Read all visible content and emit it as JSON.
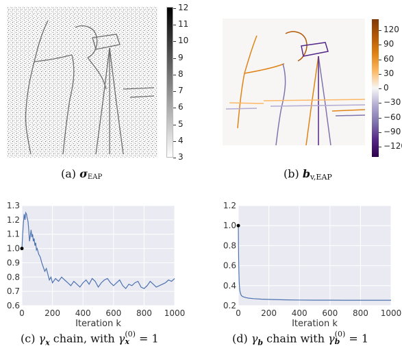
{
  "panels": {
    "a": {
      "caption_prefix": "(a)",
      "caption_symbol": "σ",
      "caption_sub": "EAP",
      "colorbar_ticks": [
        "12",
        "11",
        "10",
        "9",
        "8",
        "7",
        "6",
        "5",
        "4",
        "3"
      ]
    },
    "b": {
      "caption_prefix": "(b)",
      "caption_symbol": "b",
      "caption_sub": "v,EAP",
      "colorbar_ticks": [
        "120",
        "90",
        "60",
        "30",
        "0",
        "−30",
        "−60",
        "−90",
        "−120"
      ]
    },
    "c": {
      "caption_text_1": "(c) ",
      "caption_gamma": "γ",
      "caption_gamma_sub": "x",
      "caption_text_2": " chain, with ",
      "caption_gamma0": "γ",
      "caption_gamma0_sub": "x",
      "caption_sup": "(0)",
      "caption_text_3": " = 1"
    },
    "d": {
      "caption_text_1": "(d) ",
      "caption_gamma": "γ",
      "caption_gamma_sub": "b",
      "caption_text_2": " chain with ",
      "caption_gamma0": "γ",
      "caption_gamma0_sub": "b",
      "caption_sup": "(0)",
      "caption_text_3": " = 1"
    }
  },
  "colors": {
    "line": "#4c72b0",
    "plot_bg": "#eaeaf2",
    "grid": "#ffffff",
    "cmap_b_top": "#b35806",
    "cmap_b_mid": "#f7f7f7",
    "cmap_b_bot": "#542788"
  },
  "chart_data": [
    {
      "type": "line",
      "id": "c",
      "title": "",
      "xlabel": "Iteration k",
      "ylabel": "",
      "xlim": [
        0,
        1000
      ],
      "ylim": [
        0.6,
        1.3
      ],
      "xticks": [
        0,
        200,
        400,
        600,
        800,
        1000
      ],
      "yticks": [
        0.6,
        0.7,
        0.8,
        0.9,
        1.0,
        1.1,
        1.2,
        1.3
      ],
      "ytick_labels": [
        "0.6",
        "0.7",
        "0.8",
        "0.9",
        "1.0",
        "1.1",
        "1.2",
        "1.3"
      ],
      "grid": true,
      "start_point": {
        "x": 0,
        "y": 1.0
      },
      "series": [
        {
          "x": [
            0,
            5,
            10,
            15,
            20,
            25,
            30,
            35,
            40,
            45,
            50,
            55,
            60,
            65,
            70,
            75,
            80,
            85,
            90,
            95,
            100,
            110,
            120,
            130,
            140,
            150,
            160,
            170,
            180,
            190,
            200,
            220,
            240,
            260,
            280,
            300,
            320,
            340,
            360,
            380,
            400,
            420,
            440,
            460,
            480,
            500,
            520,
            540,
            560,
            580,
            600,
            620,
            640,
            660,
            680,
            700,
            720,
            740,
            760,
            780,
            800,
            820,
            840,
            860,
            880,
            900,
            920,
            940,
            960,
            980,
            1000
          ],
          "y": [
            1.0,
            1.1,
            1.18,
            1.24,
            1.2,
            1.25,
            1.24,
            1.21,
            1.19,
            1.13,
            1.05,
            1.09,
            1.13,
            1.08,
            1.1,
            1.05,
            1.07,
            1.02,
            1.04,
            0.99,
            1.0,
            0.96,
            0.94,
            0.9,
            0.87,
            0.84,
            0.86,
            0.82,
            0.78,
            0.8,
            0.76,
            0.79,
            0.77,
            0.8,
            0.78,
            0.76,
            0.74,
            0.77,
            0.75,
            0.73,
            0.76,
            0.78,
            0.75,
            0.79,
            0.77,
            0.73,
            0.76,
            0.78,
            0.79,
            0.76,
            0.74,
            0.76,
            0.78,
            0.74,
            0.72,
            0.75,
            0.74,
            0.76,
            0.77,
            0.73,
            0.72,
            0.74,
            0.77,
            0.75,
            0.73,
            0.74,
            0.75,
            0.76,
            0.78,
            0.77,
            0.79
          ]
        }
      ]
    },
    {
      "type": "line",
      "id": "d",
      "title": "",
      "xlabel": "Iteration k",
      "ylabel": "",
      "xlim": [
        0,
        1000
      ],
      "ylim": [
        0.2,
        1.2
      ],
      "xticks": [
        0,
        200,
        400,
        600,
        800,
        1000
      ],
      "yticks": [
        0.2,
        0.4,
        0.6,
        0.8,
        1.0,
        1.2
      ],
      "ytick_labels": [
        "0.2",
        "0.4",
        "0.6",
        "0.8",
        "1.0",
        "1.2"
      ],
      "grid": true,
      "start_point": {
        "x": 0,
        "y": 1.0
      },
      "series": [
        {
          "x": [
            0,
            2,
            4,
            6,
            8,
            10,
            15,
            20,
            30,
            40,
            50,
            70,
            100,
            150,
            200,
            300,
            400,
            500,
            600,
            700,
            800,
            900,
            1000
          ],
          "y": [
            1.0,
            0.7,
            0.52,
            0.43,
            0.38,
            0.35,
            0.32,
            0.3,
            0.29,
            0.285,
            0.28,
            0.275,
            0.27,
            0.265,
            0.262,
            0.258,
            0.256,
            0.255,
            0.255,
            0.254,
            0.254,
            0.254,
            0.254
          ]
        }
      ]
    }
  ]
}
